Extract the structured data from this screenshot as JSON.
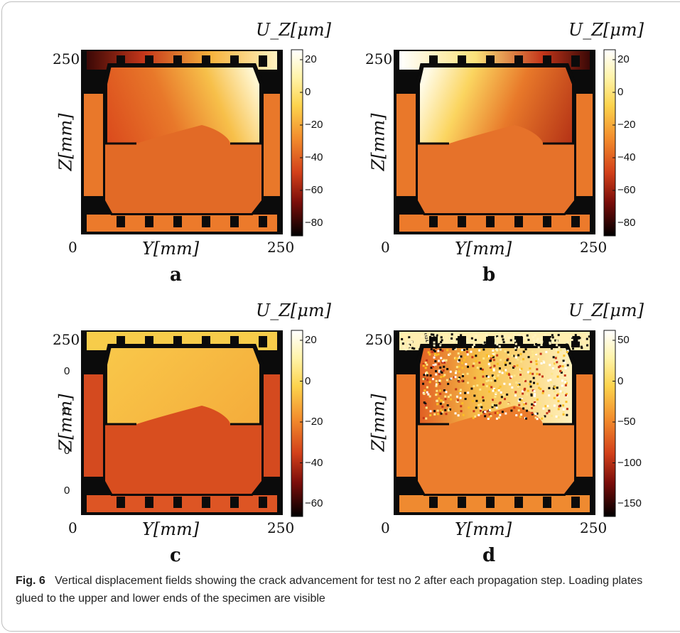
{
  "panels": [
    {
      "letter": "a",
      "cbar_title": "U_Z[μm]",
      "y_label": "Z[mm]",
      "x_label": "Y[mm]",
      "x_ticks": [
        "0",
        "250"
      ],
      "y_ticks": [
        "250"
      ],
      "cbar_ticks": [
        "20",
        "0",
        "−20",
        "−40",
        "−60",
        "−80"
      ],
      "stray_ticks": []
    },
    {
      "letter": "b",
      "cbar_title": "U_Z[μm]",
      "y_label": "Z[mm]",
      "x_label": "Y[mm]",
      "x_ticks": [
        "0",
        "250"
      ],
      "y_ticks": [
        "250"
      ],
      "cbar_ticks": [
        "20",
        "0",
        "−20",
        "−40",
        "−60",
        "−80"
      ],
      "stray_ticks": []
    },
    {
      "letter": "c",
      "cbar_title": "U_Z[μm]",
      "y_label": "Z[mm]",
      "x_label": "Y[mm]",
      "x_ticks": [
        "0",
        "250"
      ],
      "y_ticks": [
        "250"
      ],
      "cbar_ticks": [
        "20",
        "0",
        "−20",
        "−40",
        "−60"
      ],
      "stray_ticks": [
        "0",
        "0",
        "0",
        "0"
      ]
    },
    {
      "letter": "d",
      "cbar_title": "U_Z[μm]",
      "y_label": "Z[mm]",
      "x_label": "Y[mm]",
      "x_ticks": [
        "0",
        "250"
      ],
      "y_ticks": [
        "250"
      ],
      "cbar_ticks": [
        "50",
        "0",
        "−50",
        "−100",
        "−150"
      ],
      "stray_ticks": []
    }
  ],
  "caption": {
    "label": "Fig. 6",
    "text": "Vertical displacement fields showing the crack advancement for test no 2 after each propagation step. Loading plates glued to the upper and lower ends of the specimen are visible"
  },
  "colors": {
    "plate": "#e9782a",
    "specimen_low": "#d7561f",
    "hot_high": "#ffffff",
    "hot_mid": "#fcd34d",
    "hot_low": "#000000"
  },
  "chart_data": [
    {
      "type": "heatmap",
      "title": "a",
      "xlabel": "Y[mm]",
      "ylabel": "Z[mm]",
      "xlim": [
        0,
        250
      ],
      "ylim": [
        0,
        250
      ],
      "colorbar_label": "U_Z[μm]",
      "colorbar_ticks": [
        20,
        0,
        -20,
        -40,
        -60,
        -80
      ]
    },
    {
      "type": "heatmap",
      "title": "b",
      "xlabel": "Y[mm]",
      "ylabel": "Z[mm]",
      "xlim": [
        0,
        250
      ],
      "ylim": [
        0,
        250
      ],
      "colorbar_label": "U_Z[μm]",
      "colorbar_ticks": [
        20,
        0,
        -20,
        -40,
        -60,
        -80
      ]
    },
    {
      "type": "heatmap",
      "title": "c",
      "xlabel": "Y[mm]",
      "ylabel": "Z[mm]",
      "xlim": [
        0,
        250
      ],
      "ylim": [
        0,
        250
      ],
      "colorbar_label": "U_Z[μm]",
      "colorbar_ticks": [
        20,
        0,
        -20,
        -40,
        -60
      ]
    },
    {
      "type": "heatmap",
      "title": "d",
      "xlabel": "Y[mm]",
      "ylabel": "Z[mm]",
      "xlim": [
        0,
        250
      ],
      "ylim": [
        0,
        250
      ],
      "colorbar_label": "U_Z[μm]",
      "colorbar_ticks": [
        50,
        0,
        -50,
        -100,
        -150
      ]
    }
  ]
}
